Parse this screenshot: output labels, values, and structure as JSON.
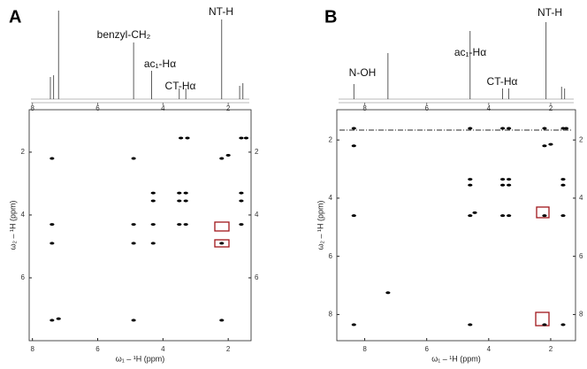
{
  "chart_data": [
    {
      "type": "scatter",
      "panel_label": "A",
      "annotations": [
        "benzyl-CH₂",
        "ac₁-Hα",
        "CT-Hα",
        "NT-H"
      ],
      "x_label": "ω₁ – ¹H (ppm)",
      "y_label": "ω₂ – ¹H (ppm)",
      "xlim": [
        8.1,
        1.3
      ],
      "ylim": [
        0.65,
        8.0
      ],
      "xticks": [
        8,
        6,
        4,
        2
      ],
      "yticks": [
        2,
        4,
        6
      ],
      "color": "#000000",
      "x": [
        3.45,
        3.25,
        1.6,
        1.45,
        7.4,
        4.9,
        2.2,
        2.0,
        4.3,
        3.5,
        3.3,
        1.6,
        4.3,
        3.5,
        3.3,
        1.6,
        7.4,
        4.9,
        4.3,
        3.5,
        3.3,
        1.6,
        7.4,
        4.9,
        4.3,
        2.2,
        7.4,
        7.2,
        4.9,
        2.2
      ],
      "y": [
        1.55,
        1.55,
        1.55,
        1.55,
        2.2,
        2.2,
        2.2,
        2.1,
        3.3,
        3.3,
        3.3,
        3.3,
        3.55,
        3.55,
        3.55,
        3.55,
        4.3,
        4.3,
        4.3,
        4.3,
        4.3,
        4.3,
        4.9,
        4.9,
        4.9,
        4.9,
        7.35,
        7.3,
        7.35,
        7.35
      ],
      "spectrum": {
        "x": [
          7.45,
          7.35,
          7.2,
          4.9,
          4.35,
          3.5,
          3.3,
          2.2,
          1.65,
          1.55
        ],
        "heights": [
          0.25,
          0.27,
          1.0,
          0.64,
          0.32,
          0.12,
          0.12,
          0.9,
          0.15,
          0.18
        ]
      }
    },
    {
      "type": "scatter",
      "panel_label": "B",
      "annotations": [
        "N-OH",
        "ac₁-Hα",
        "CT-Hα",
        "NT-H"
      ],
      "x_label": "ω₁ – ¹H (ppm)",
      "y_label": "ω₂ – ¹H (ppm)",
      "xlim": [
        8.9,
        1.2
      ],
      "ylim": [
        0.96,
        8.9
      ],
      "xticks": [
        8,
        6,
        4,
        2
      ],
      "yticks": [
        2,
        4,
        6,
        8
      ],
      "color": "#000000",
      "x": [
        8.35,
        4.6,
        3.55,
        3.35,
        2.2,
        1.6,
        1.5,
        8.35,
        2.2,
        2.0,
        4.6,
        3.55,
        3.35,
        1.6,
        4.6,
        3.55,
        3.35,
        1.6,
        8.35,
        4.6,
        4.45,
        3.55,
        3.35,
        2.2,
        1.6,
        7.25,
        8.35,
        4.6,
        2.2,
        1.6
      ],
      "y": [
        1.6,
        1.6,
        1.6,
        1.6,
        1.6,
        1.6,
        1.6,
        2.2,
        2.2,
        2.15,
        3.35,
        3.35,
        3.35,
        3.35,
        3.55,
        3.55,
        3.55,
        3.55,
        4.6,
        4.6,
        4.5,
        4.6,
        4.6,
        4.6,
        4.6,
        7.25,
        8.35,
        8.35,
        8.35,
        8.35
      ],
      "spectrum": {
        "x": [
          8.35,
          7.25,
          4.6,
          3.55,
          3.35,
          2.15,
          1.65,
          1.55
        ],
        "heights": [
          0.17,
          0.52,
          0.77,
          0.12,
          0.12,
          0.87,
          0.14,
          0.12
        ]
      }
    }
  ]
}
